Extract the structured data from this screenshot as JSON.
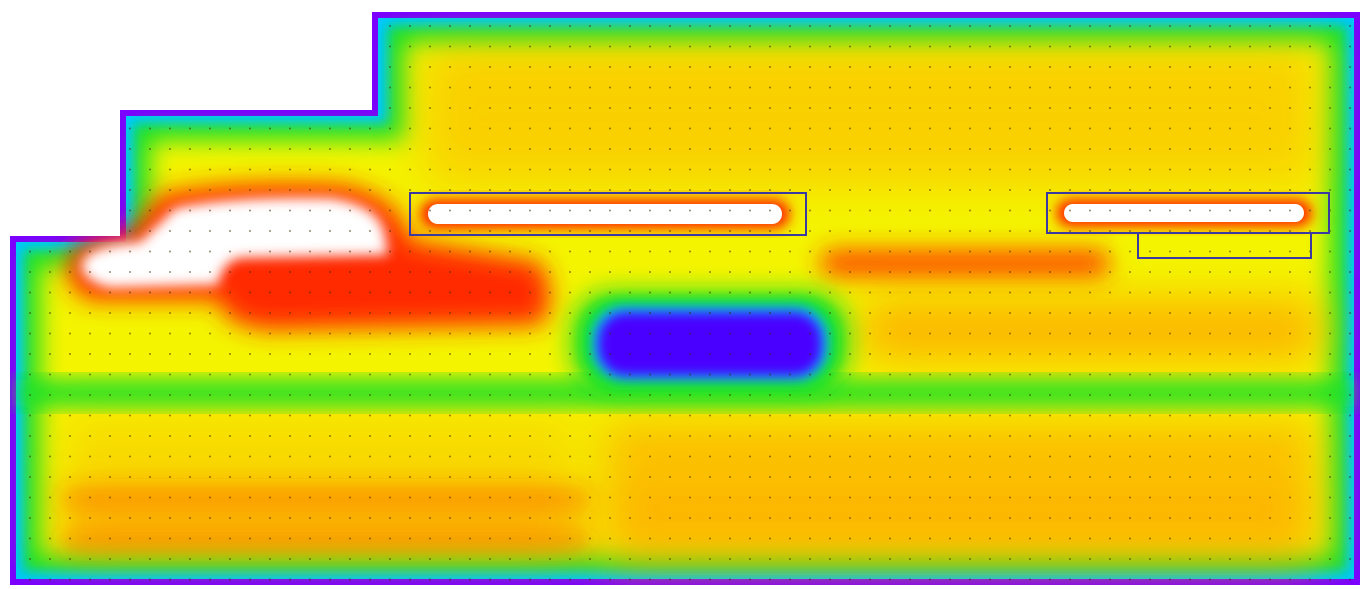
{
  "palette": {
    "background": "#ffffff",
    "outline": "#7b00ff",
    "inner_edge": "#00c8ff",
    "low": "#18e02a",
    "mid": "#f4f400",
    "warm": "#ffa400",
    "high": "#ff2a00",
    "peak": "#ffffff",
    "cold": "#4a00ff",
    "cold_core": "#6a00ff",
    "frame_line": "#3a3aa0",
    "grid_dot": "#3a2a00"
  },
  "chart_data": {
    "type": "heatmap",
    "title": "",
    "xlabel": "",
    "ylabel": "",
    "legend": "none",
    "grid": false,
    "colorscale": [
      "#7b00ff",
      "#00c8ff",
      "#18e02a",
      "#f4f400",
      "#ffa400",
      "#ff2a00",
      "#ffffff"
    ],
    "regions": [
      {
        "name": "hotspot-left",
        "level": "peak"
      },
      {
        "name": "strip-center-top",
        "level": "peak"
      },
      {
        "name": "strip-right-top",
        "level": "peak"
      },
      {
        "name": "band-center-red",
        "level": "high"
      },
      {
        "name": "cold-zone-center",
        "level": "cold"
      },
      {
        "name": "sub-rect-right",
        "level": "low"
      }
    ]
  }
}
